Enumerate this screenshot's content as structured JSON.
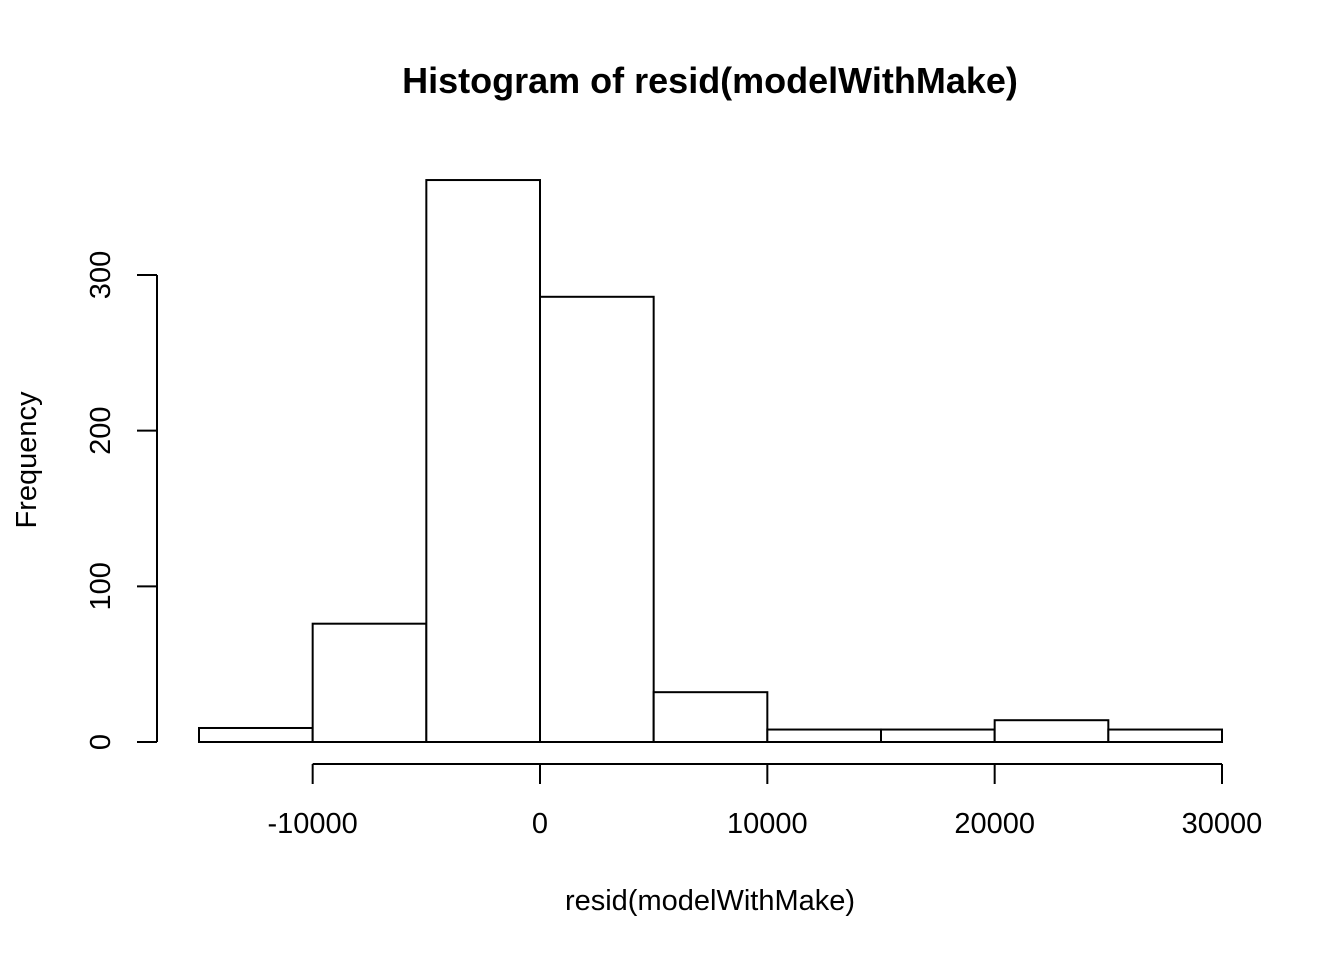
{
  "chart_data": {
    "type": "bar",
    "title": "Histogram of resid(modelWithMake)",
    "xlabel": "resid(modelWithMake)",
    "ylabel": "Frequency",
    "bins": [
      {
        "from": -15000,
        "to": -10000,
        "count": 9
      },
      {
        "from": -10000,
        "to": -5000,
        "count": 76
      },
      {
        "from": -5000,
        "to": 0,
        "count": 361
      },
      {
        "from": 0,
        "to": 5000,
        "count": 286
      },
      {
        "from": 5000,
        "to": 10000,
        "count": 32
      },
      {
        "from": 10000,
        "to": 15000,
        "count": 8
      },
      {
        "from": 15000,
        "to": 20000,
        "count": 8
      },
      {
        "from": 20000,
        "to": 25000,
        "count": 14
      },
      {
        "from": 25000,
        "to": 30000,
        "count": 8
      }
    ],
    "xticks": [
      -10000,
      0,
      10000,
      20000,
      30000
    ],
    "xtick_labels": [
      "-10000",
      "0",
      "10000",
      "20000",
      "30000"
    ],
    "yticks": [
      0,
      100,
      200,
      300
    ],
    "ytick_labels": [
      "0",
      "100",
      "200",
      "300"
    ],
    "xlim": [
      -15000,
      30000
    ],
    "ylim": [
      0,
      361
    ],
    "grid": false,
    "legend": "none",
    "colors": {
      "bar_fill": "#ffffff",
      "bar_stroke": "#000000"
    }
  }
}
